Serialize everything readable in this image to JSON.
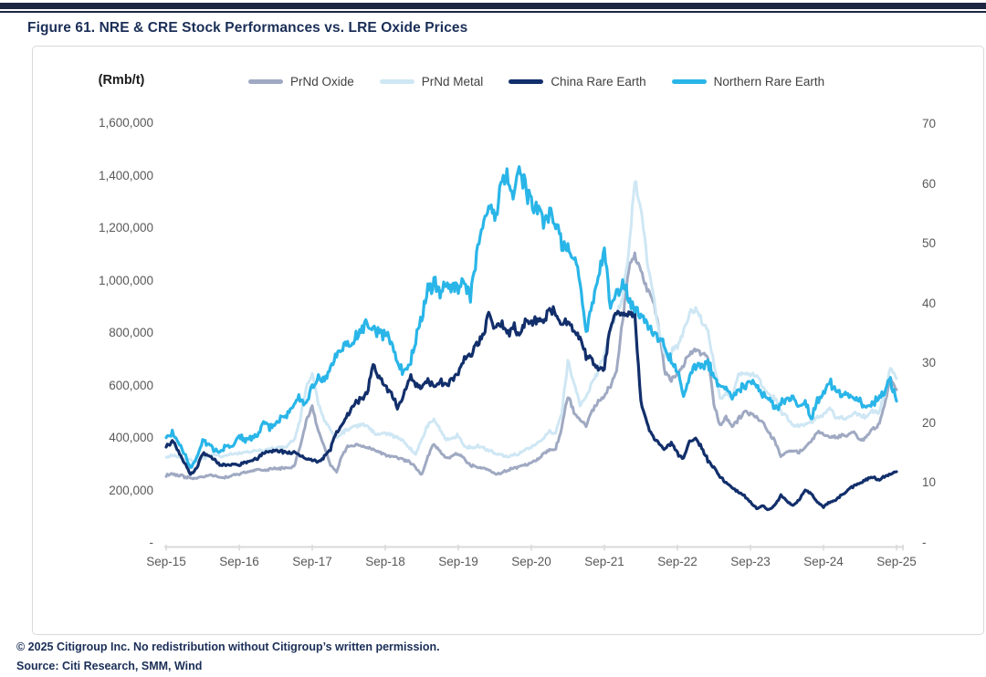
{
  "header": {
    "title": "Figure 61. NRE & CRE Stock Performances vs. LRE Oxide Prices"
  },
  "footer": {
    "line1": "© 2025 Citigroup Inc. No redistribution without Citigroup’s written permission.",
    "line2": "Source: Citi Research, SMM, Wind"
  },
  "colors": {
    "brand_bar": "#1c2541",
    "title_text": "#1a2e57",
    "axis_text": "#595959",
    "axis_line": "#d9d9d9",
    "prnd_oxide": "#9fa9c2",
    "prnd_metal": "#cfe7f4",
    "china_rare_earth": "#122f6b",
    "northern_rare_earth": "#29b5e8"
  },
  "chart_data": {
    "type": "line",
    "title": "NRE & CRE Stock Performances vs. LRE Oxide Prices",
    "unit_label": "(Rmb/t)",
    "x_monthly_from": "Sep-15",
    "x_monthly_to": "Sep-25",
    "x_ticks": [
      "Sep-15",
      "Sep-16",
      "Sep-17",
      "Sep-18",
      "Sep-19",
      "Sep-20",
      "Sep-21",
      "Sep-22",
      "Sep-23",
      "Sep-24",
      "Sep-25"
    ],
    "left_axis": {
      "label": "(Rmb/t)",
      "tick_labels": [
        "1,600,000",
        "1,400,000",
        "1,200,000",
        "1,000,000",
        "800,000",
        "600,000",
        "400,000",
        "200,000",
        "-"
      ],
      "tick_values": [
        1600000,
        1400000,
        1200000,
        1000000,
        800000,
        600000,
        400000,
        200000,
        0
      ],
      "range": [
        0,
        1600000
      ]
    },
    "right_axis": {
      "tick_labels": [
        "70",
        "60",
        "50",
        "40",
        "30",
        "20",
        "10",
        "-"
      ],
      "tick_values": [
        70,
        60,
        50,
        40,
        30,
        20,
        10,
        0
      ],
      "range": [
        0,
        70
      ]
    },
    "legend_position": "top",
    "grid": false,
    "series": [
      {
        "name": "PrNd Oxide",
        "axis": "left",
        "color": "#9fa9c2",
        "values": [
          258000,
          262000,
          258000,
          252000,
          248000,
          245000,
          252000,
          258000,
          255000,
          248000,
          252000,
          258000,
          262000,
          268000,
          275000,
          280000,
          278000,
          280000,
          282000,
          285000,
          285000,
          290000,
          365000,
          460000,
          522000,
          424000,
          365000,
          300000,
          268000,
          340000,
          370000,
          376000,
          368000,
          365000,
          354000,
          345000,
          335000,
          330000,
          325000,
          318000,
          310000,
          285000,
          261000,
          330000,
          376000,
          350000,
          323000,
          330000,
          341000,
          320000,
          296000,
          290000,
          285000,
          278000,
          261000,
          268000,
          275000,
          285000,
          290000,
          296000,
          306000,
          320000,
          340000,
          354000,
          358000,
          440000,
          563000,
          500000,
          470000,
          445000,
          504000,
          539000,
          560000,
          600000,
          650000,
          850000,
          1050000,
          1101000,
          1040000,
          967000,
          932000,
          810000,
          650000,
          620000,
          644000,
          680000,
          713000,
          736000,
          720000,
          713000,
          530000,
          446000,
          480000,
          445000,
          470000,
          504000,
          490000,
          480000,
          459000,
          420000,
          389000,
          330000,
          345000,
          354000,
          343000,
          365000,
          390000,
          424000,
          411000,
          405000,
          400000,
          411000,
          411000,
          424000,
          389000,
          400000,
          435000,
          446000,
          520000,
          626000,
          584000
        ]
      },
      {
        "name": "PrNd Metal",
        "axis": "left",
        "color": "#cfe7f4",
        "values": [
          328000,
          335000,
          330000,
          322000,
          315000,
          312000,
          320000,
          330000,
          335000,
          330000,
          335000,
          340000,
          341000,
          345000,
          352000,
          354000,
          354000,
          358000,
          360000,
          365000,
          372000,
          390000,
          470000,
          590000,
          643000,
          530000,
          470000,
          430000,
          400000,
          420000,
          435000,
          446000,
          448000,
          446000,
          424000,
          411000,
          420000,
          411000,
          400000,
          390000,
          360000,
          341000,
          390000,
          450000,
          470000,
          430000,
          390000,
          400000,
          411000,
          365000,
          365000,
          370000,
          360000,
          354000,
          341000,
          335000,
          330000,
          335000,
          341000,
          354000,
          365000,
          380000,
          400000,
          424000,
          420000,
          500000,
          690000,
          609000,
          528000,
          560000,
          609000,
          660000,
          713000,
          817000,
          876000,
          930000,
          1100000,
          1390000,
          1270000,
          1085000,
          950000,
          807000,
          713000,
          730000,
          748000,
          800000,
          876000,
          887000,
          852000,
          800000,
          689000,
          550000,
          570000,
          550000,
          644000,
          650000,
          640000,
          644000,
          598000,
          570000,
          550000,
          500000,
          480000,
          445000,
          445000,
          455000,
          459000,
          480000,
          490000,
          515000,
          480000,
          475000,
          470000,
          494000,
          485000,
          480000,
          504000,
          495000,
          560000,
          671000,
          626000
        ]
      },
      {
        "name": "China Rare Earth",
        "axis": "right",
        "color": "#122f6b",
        "values": [
          16.0,
          17.0,
          15.5,
          13.5,
          11.5,
          12.5,
          15.0,
          14.5,
          14.0,
          13.0,
          13.0,
          13.2,
          13.0,
          13.4,
          13.8,
          14.2,
          15.0,
          15.3,
          15.6,
          15.3,
          15.0,
          15.3,
          14.5,
          14.2,
          14.0,
          13.4,
          14.5,
          15.6,
          18.6,
          20.0,
          21.7,
          23.2,
          24.0,
          24.7,
          29.8,
          27.8,
          26.0,
          25.2,
          22.6,
          24.5,
          27.8,
          26.5,
          25.7,
          27.2,
          26.2,
          27.0,
          26.2,
          27.5,
          28.2,
          30.8,
          31.5,
          32.8,
          34.4,
          38.5,
          35.4,
          37.0,
          34.8,
          36.3,
          34.8,
          36.9,
          36.5,
          37.4,
          36.9,
          39.4,
          38.5,
          36.3,
          36.9,
          35.5,
          34.4,
          31.3,
          30.5,
          29.0,
          29.3,
          36.0,
          38.5,
          38.0,
          38.3,
          38.0,
          23.7,
          20.0,
          17.6,
          16.5,
          15.6,
          16.8,
          15.0,
          14.0,
          17.0,
          17.6,
          16.0,
          13.8,
          12.5,
          11.0,
          10.0,
          9.2,
          8.5,
          7.9,
          6.8,
          5.8,
          6.2,
          5.5,
          6.3,
          7.9,
          7.0,
          6.2,
          7.2,
          8.9,
          8.2,
          6.8,
          6.0,
          6.8,
          7.2,
          8.0,
          8.9,
          9.5,
          9.9,
          10.5,
          11.0,
          10.5,
          11.0,
          11.5,
          11.9
        ]
      },
      {
        "name": "Northern Rare Earth",
        "axis": "right",
        "color": "#29b5e8",
        "values": [
          17.5,
          18.5,
          17.0,
          15.0,
          12.5,
          14.0,
          17.0,
          16.5,
          15.5,
          15.0,
          16.5,
          16.0,
          18.0,
          17.1,
          17.5,
          18.0,
          20.2,
          19.1,
          20.0,
          21.1,
          21.7,
          23.0,
          24.2,
          23.2,
          26.2,
          27.8,
          26.7,
          29.8,
          31.3,
          33.0,
          33.5,
          34.5,
          35.5,
          36.5,
          36.0,
          35.0,
          34.5,
          34.0,
          30.5,
          28.2,
          30.0,
          34.0,
          38.0,
          42.0,
          43.5,
          42.0,
          43.5,
          42.8,
          42.4,
          44.0,
          41.5,
          48.5,
          52.7,
          55.5,
          54.0,
          59.8,
          61.4,
          57.7,
          62.3,
          59.5,
          57.0,
          56.2,
          53.1,
          55.3,
          53.0,
          50.0,
          49.5,
          48.1,
          43.5,
          34.4,
          40.0,
          44.6,
          49.2,
          39.4,
          41.5,
          43.5,
          40.9,
          39.4,
          38.0,
          36.5,
          35.0,
          34.0,
          32.5,
          30.3,
          28.8,
          24.2,
          28.0,
          29.8,
          29.3,
          30.3,
          27.5,
          26.2,
          25.5,
          24.7,
          25.5,
          26.0,
          27.2,
          26.2,
          24.8,
          24.2,
          22.5,
          23.2,
          24.0,
          24.2,
          22.6,
          23.7,
          20.6,
          24.0,
          25.2,
          26.7,
          25.7,
          24.2,
          25.2,
          24.2,
          23.7,
          22.1,
          23.2,
          24.2,
          25.0,
          27.2,
          23.7
        ]
      }
    ]
  }
}
